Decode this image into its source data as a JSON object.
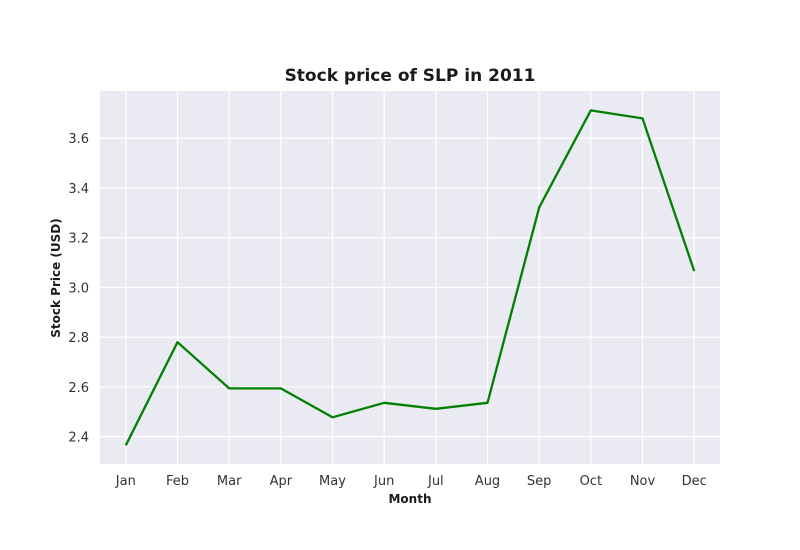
{
  "chart_data": {
    "type": "line",
    "title": "Stock price of SLP in 2011",
    "xlabel": "Month",
    "ylabel": "Stock Price (USD)",
    "categories": [
      "Jan",
      "Feb",
      "Mar",
      "Apr",
      "May",
      "Jun",
      "Jul",
      "Aug",
      "Sep",
      "Oct",
      "Nov",
      "Dec"
    ],
    "values": [
      2.365,
      2.78,
      2.594,
      2.594,
      2.478,
      2.536,
      2.512,
      2.536,
      3.322,
      3.712,
      3.68,
      3.066
    ],
    "ylim": [
      2.29,
      3.79
    ],
    "yticks": [
      "2.4",
      "2.6",
      "2.8",
      "3.0",
      "3.2",
      "3.4",
      "3.6"
    ],
    "grid": true,
    "line_color": "#008000",
    "plot_background": "#eaeaf2",
    "grid_color": "#ffffff"
  }
}
